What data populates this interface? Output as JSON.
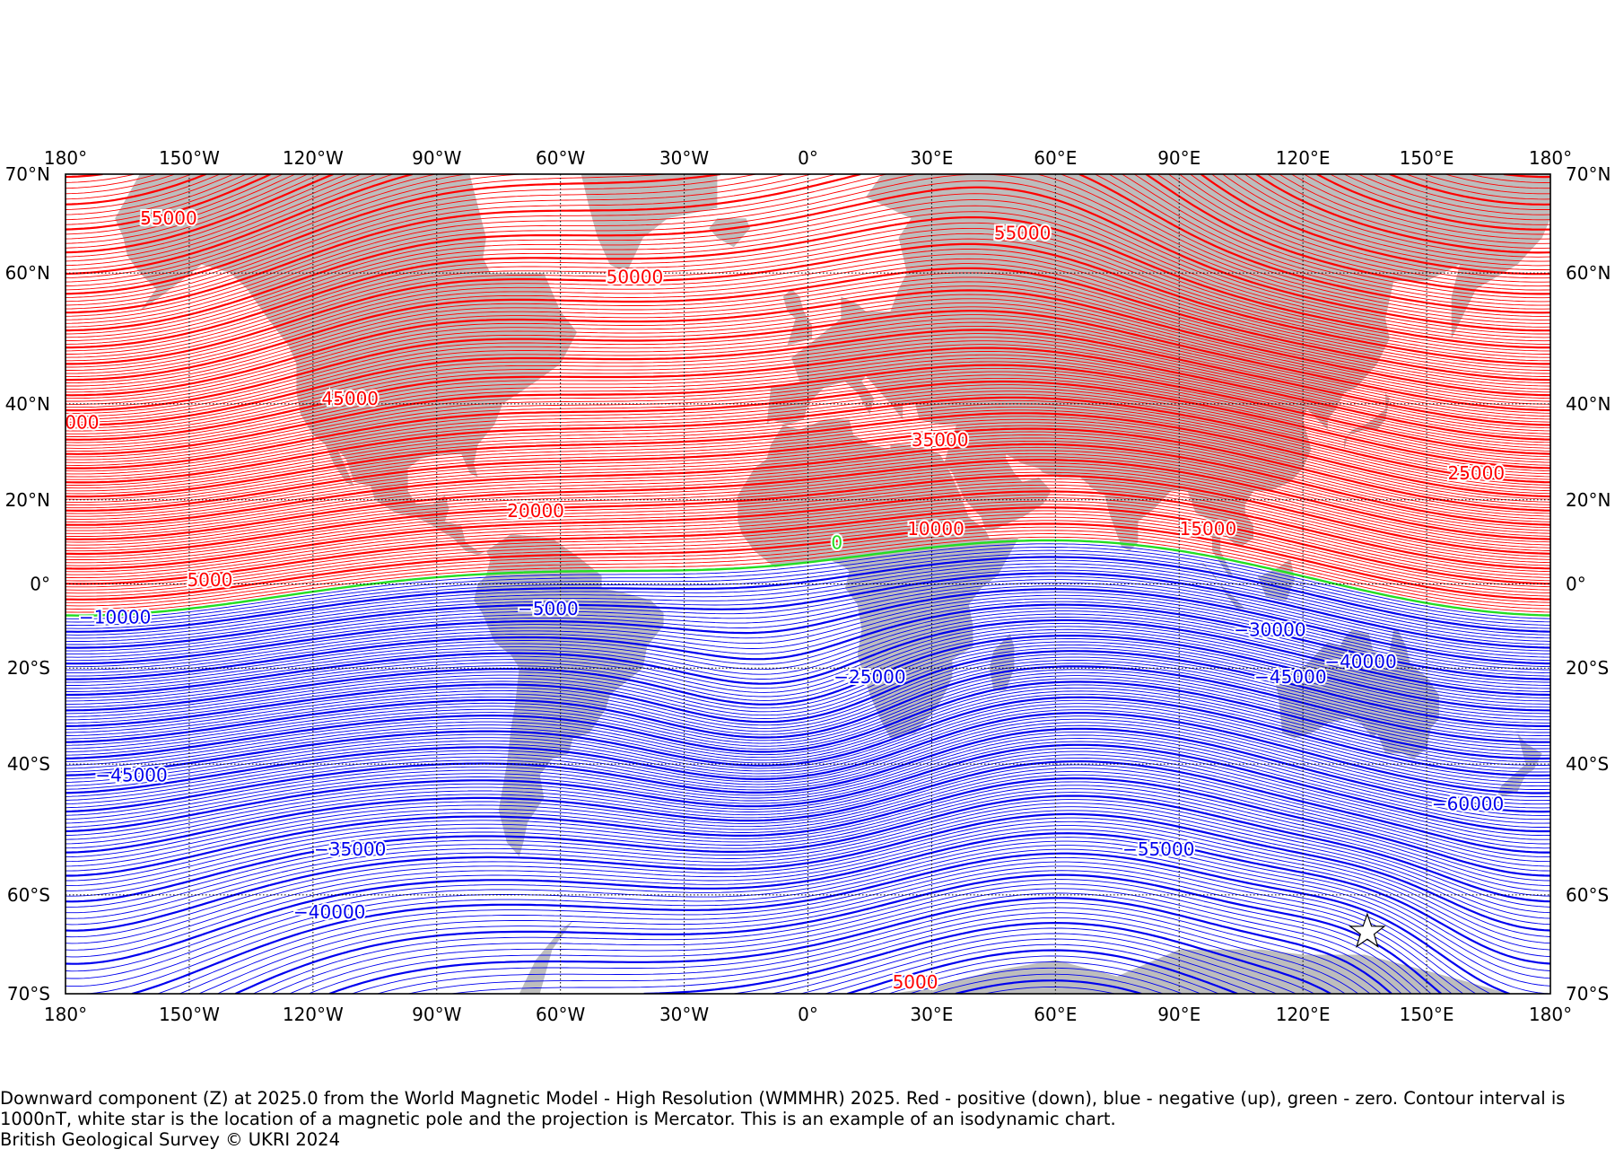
{
  "map": {
    "projection": "Mercator",
    "extent": {
      "lon": [
        -180,
        180
      ],
      "lat": [
        -70,
        70
      ]
    },
    "colors": {
      "land": "#bdbdbd",
      "positive": "#ff0000",
      "negative": "#0000ee",
      "zero": "#22dd22",
      "frame": "#000000",
      "grid": "#000000",
      "pole_star": "#ffffff"
    },
    "grid": {
      "style": "dotted",
      "lon_step": 30
    },
    "lon_ticks": [
      "180°",
      "150°W",
      "120°W",
      "90°W",
      "60°W",
      "30°W",
      "0°",
      "30°E",
      "60°E",
      "90°E",
      "120°E",
      "150°E",
      "180°"
    ],
    "lat_ticks": [
      {
        "lat": 70,
        "label": "70°N"
      },
      {
        "lat": 60,
        "label": "60°N"
      },
      {
        "lat": 40,
        "label": "40°N"
      },
      {
        "lat": 20,
        "label": "20°N"
      },
      {
        "lat": 0,
        "label": "0°"
      },
      {
        "lat": -20,
        "label": "20°S"
      },
      {
        "lat": -40,
        "label": "40°S"
      },
      {
        "lat": -60,
        "label": "60°S"
      },
      {
        "lat": -70,
        "label": "70°S"
      }
    ],
    "contour_interval_nT": 1000,
    "contour_labels": [
      {
        "text": "55000",
        "lon": -155,
        "lat": 66
      },
      {
        "text": "55000",
        "lon": 52,
        "lat": 64.5
      },
      {
        "text": "50000",
        "lon": -42,
        "lat": 59.5
      },
      {
        "text": "45000",
        "lon": -111,
        "lat": 41
      },
      {
        "text": "000",
        "lon": -176,
        "lat": 36.5
      },
      {
        "text": "35000",
        "lon": 32,
        "lat": 33
      },
      {
        "text": "25000",
        "lon": 162,
        "lat": 26
      },
      {
        "text": "20000",
        "lon": -66,
        "lat": 17.5
      },
      {
        "text": "10000",
        "lon": 31,
        "lat": 13.3
      },
      {
        "text": "15000",
        "lon": 97,
        "lat": 13.3
      },
      {
        "text": "0",
        "lon": 7,
        "lat": 10
      },
      {
        "text": "5000",
        "lon": -145,
        "lat": 1
      },
      {
        "text": "−10000",
        "lon": -168,
        "lat": -8
      },
      {
        "text": "−5000",
        "lon": -63,
        "lat": -6
      },
      {
        "text": "−30000",
        "lon": 112,
        "lat": -11
      },
      {
        "text": "−25000",
        "lon": 15,
        "lat": -22
      },
      {
        "text": "−40000",
        "lon": 134,
        "lat": -18.5
      },
      {
        "text": "−45000",
        "lon": 117,
        "lat": -22
      },
      {
        "text": "−45000",
        "lon": -164,
        "lat": -42
      },
      {
        "text": "−60000",
        "lon": 160,
        "lat": -47
      },
      {
        "text": "−35000",
        "lon": -111,
        "lat": -54
      },
      {
        "text": "−55000",
        "lon": 85,
        "lat": -54
      },
      {
        "text": "−40000",
        "lon": -116,
        "lat": -62
      },
      {
        "text": "5000",
        "lon": 26,
        "lat": -69
      }
    ],
    "pole_marker": {
      "lon": 135.6,
      "lat": -64.2
    }
  },
  "chart_data": {
    "type": "contour",
    "title": "",
    "component": "Z (downward)",
    "units": "nT",
    "contour_interval": 1000,
    "lon_range": [
      -180,
      180
    ],
    "lat_range": [
      -70,
      70
    ],
    "labeled_values": [
      55000,
      50000,
      45000,
      35000,
      25000,
      20000,
      15000,
      10000,
      5000,
      0,
      -5000,
      -10000,
      -25000,
      -30000,
      -35000,
      -40000,
      -45000,
      -55000,
      -60000
    ],
    "series": [
      {
        "name": "positive (down)",
        "color": "#ff0000"
      },
      {
        "name": "negative (up)",
        "color": "#0000ee"
      },
      {
        "name": "zero",
        "color": "#22dd22"
      }
    ]
  },
  "caption": {
    "line1": "Downward component (Z) at 2025.0 from the World Magnetic Model - High Resolution (WMMHR) 2025. Red - positive (down), blue - negative (up), green - zero. Contour interval is 1000nT, white star is the location of a magnetic pole and the projection is Mercator. This is an example of an isodynamic chart.",
    "line2": "British Geological Survey © UKRI 2024"
  }
}
